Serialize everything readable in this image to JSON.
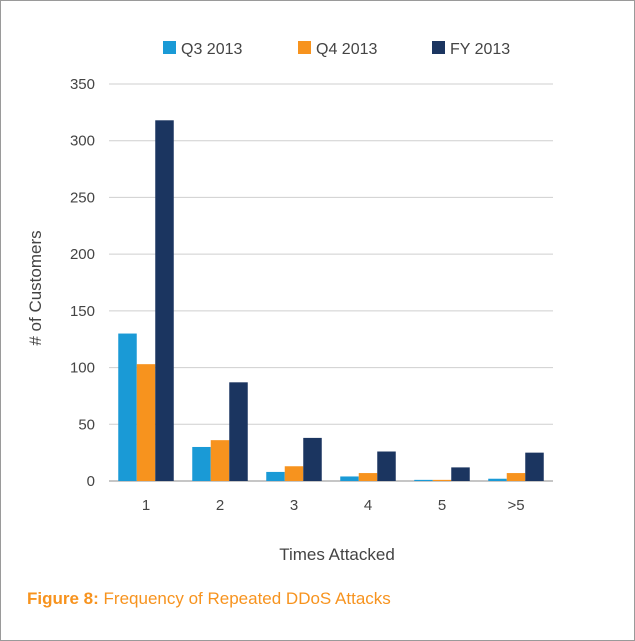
{
  "caption": {
    "label": "Figure 8:",
    "text": "Frequency of Repeated DDoS Attacks"
  },
  "chart_data": {
    "type": "bar",
    "categories": [
      "1",
      "2",
      "3",
      "4",
      "5",
      ">5"
    ],
    "series": [
      {
        "name": "Q3 2013",
        "color": "#1a9ad6",
        "values": [
          130,
          30,
          8,
          4,
          1,
          2
        ]
      },
      {
        "name": "Q4 2013",
        "color": "#f7931e",
        "values": [
          103,
          36,
          13,
          7,
          1,
          7
        ]
      },
      {
        "name": "FY 2013",
        "color": "#1b3560",
        "values": [
          318,
          87,
          38,
          26,
          12,
          25
        ]
      }
    ],
    "xlabel": "Times Attacked",
    "ylabel": "# of Customers",
    "ylim": [
      0,
      350
    ],
    "yticks": [
      0,
      50,
      100,
      150,
      200,
      250,
      300,
      350
    ],
    "grid": true,
    "legend": "top"
  }
}
